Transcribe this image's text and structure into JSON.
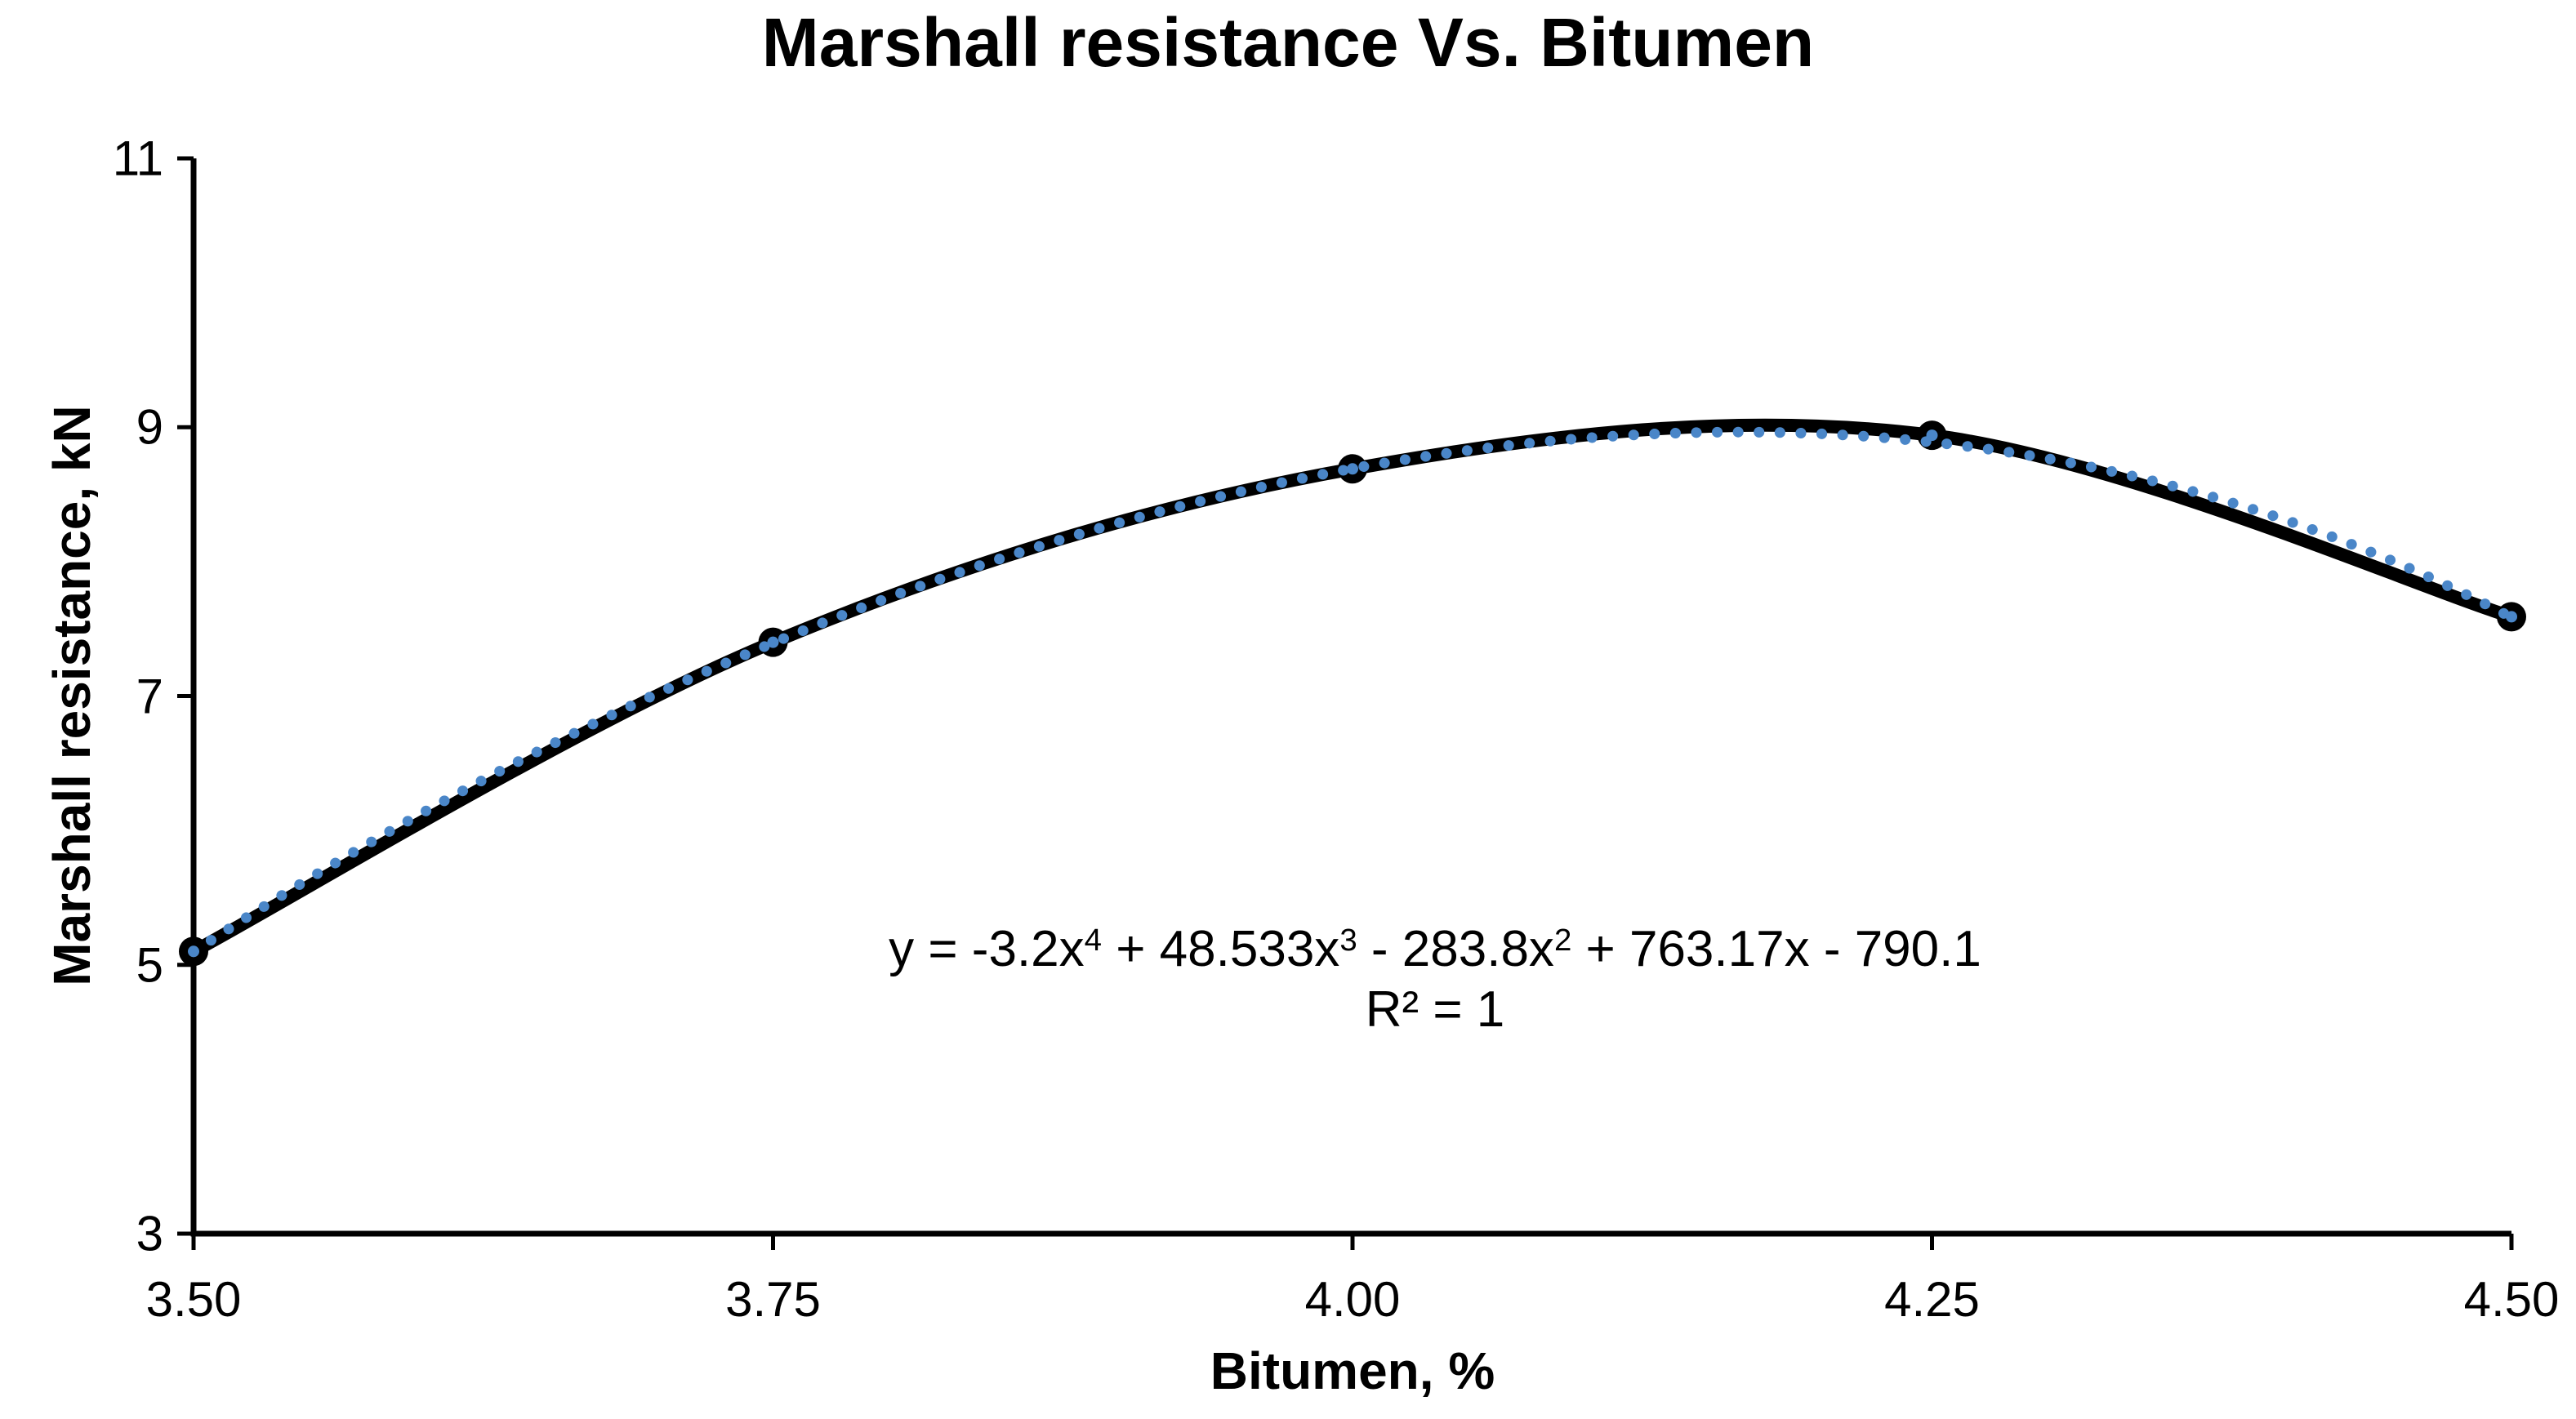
{
  "chart": {
    "title": "Marshall resistance Vs. Bitumen",
    "x_title": "Bitumen, %",
    "y_title": "Marshall resistance, kN",
    "r_squared_label": "R² = 1",
    "equation_segments": [
      {
        "text": "y = -3.2x"
      },
      {
        "text": "4",
        "sup": true
      },
      {
        "text": " + 48.533x"
      },
      {
        "text": "3",
        "sup": true
      },
      {
        "text": " - 283.8x"
      },
      {
        "text": "2",
        "sup": true
      },
      {
        "text": " + 763.17x - 790.1"
      }
    ]
  },
  "chart_data": {
    "type": "line",
    "subtype": "smooth-line-with-markers",
    "title": "Marshall resistance Vs. Bitumen",
    "xlabel": "Bitumen, %",
    "ylabel": "Marshall resistance, kN",
    "x": [
      3.5,
      3.75,
      4.0,
      4.25,
      4.5
    ],
    "series": [
      {
        "name": "Marshall resistance",
        "values": [
          5.1,
          7.4,
          8.69,
          8.94,
          7.59
        ],
        "color": "#000000",
        "marker": "filled-circle"
      }
    ],
    "xlim": [
      3.5,
      4.5
    ],
    "ylim": [
      3,
      11
    ],
    "x_tick_labels": [
      "3.50",
      "3.75",
      "4.00",
      "4.25",
      "4.50"
    ],
    "y_tick_values": [
      3,
      5,
      7,
      9,
      11
    ],
    "grid": false,
    "legend_position": "none",
    "trendline": {
      "type": "polynomial",
      "degree": 4,
      "coefficients_desc": [
        -3.2,
        48.533,
        -283.8,
        763.17,
        -790.1
      ],
      "equation": "y = -3.2x⁴ + 48.533x³ - 283.8x² + 763.17x - 790.1",
      "r_squared": 1,
      "color": "#4A86C8",
      "style": "dotted"
    },
    "axis_color": "#000000",
    "background_color": "#ffffff"
  }
}
